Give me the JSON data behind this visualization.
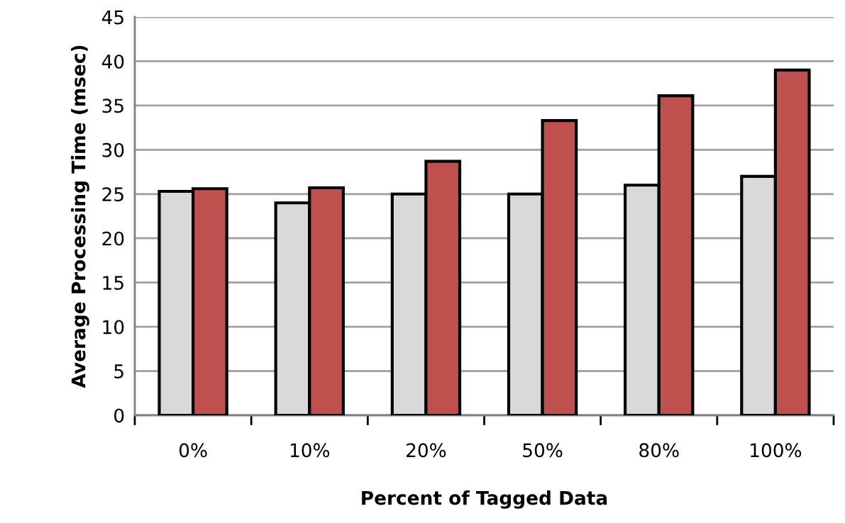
{
  "chart_data": {
    "type": "bar",
    "xlabel": "Percent of Tagged Data",
    "ylabel": "Average Processing Time (msec)",
    "categories": [
      "0%",
      "10%",
      "20%",
      "50%",
      "80%",
      "100%"
    ],
    "series": [
      {
        "color": "#d9d9d9",
        "values": [
          25.3,
          24.0,
          25.0,
          25.0,
          26.0,
          27.0
        ]
      },
      {
        "color": "#c0504d",
        "values": [
          25.6,
          25.7,
          28.7,
          33.3,
          36.1,
          39.0
        ]
      }
    ],
    "ylim": [
      0,
      45
    ],
    "yticks": [
      0,
      5,
      10,
      15,
      20,
      25,
      30,
      35,
      40,
      45
    ],
    "grid": "y",
    "legend": false
  }
}
